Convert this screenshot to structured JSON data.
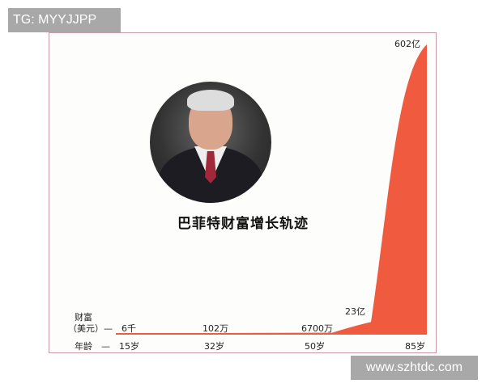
{
  "watermarks": {
    "top_left": "TG: MYYJJPP",
    "bottom_right": "www.szhtdc.com"
  },
  "chart_data": {
    "type": "area",
    "title": "巴菲特财富增长轨迹",
    "row_labels": {
      "wealth": "财富",
      "wealth_unit": "（美元）—",
      "age": "年龄　—"
    },
    "points": [
      {
        "age": "15岁",
        "wealth_label": "6千",
        "wealth_yi": 6e-05
      },
      {
        "age": "32岁",
        "wealth_label": "102万",
        "wealth_yi": 0.0102
      },
      {
        "age": "50岁",
        "wealth_label": "6700万",
        "wealth_yi": 0.67
      },
      {
        "age": "",
        "wealth_label": "23亿",
        "wealth_yi": 23
      },
      {
        "age": "85岁",
        "wealth_label": "602亿",
        "wealth_yi": 602
      }
    ],
    "fill_color": "#f05a3e"
  }
}
